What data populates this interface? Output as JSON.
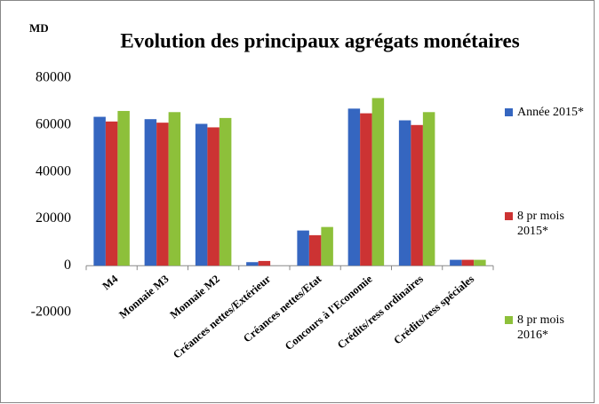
{
  "chart_data": {
    "type": "bar",
    "title": "Evolution des principaux agrégats monétaires",
    "unit": "MD",
    "categories": [
      "M4",
      "Monnaie M3",
      "Monnaie M2",
      "Créances nettes/Extérieur",
      "Créances nettes/Etat",
      "Concours à l'Economie",
      "Crédits/ress ordinaires",
      "Crédits/ress spéciales"
    ],
    "series": [
      {
        "name": "Année 2015*",
        "color": "#3566c0",
        "values": [
          63500,
          62500,
          60500,
          1500,
          15000,
          67000,
          62000,
          2500
        ]
      },
      {
        "name": "8 pr mois 2015*",
        "color": "#cc3333",
        "values": [
          61500,
          61000,
          59000,
          2000,
          13000,
          65000,
          60000,
          2500
        ]
      },
      {
        "name": "8 pr mois 2016*",
        "color": "#8dc03a",
        "values": [
          66000,
          65500,
          63000,
          0,
          16500,
          71500,
          65500,
          2500
        ]
      }
    ],
    "ylim": [
      -20000,
      80000
    ],
    "yticks": [
      -20000,
      0,
      20000,
      40000,
      60000,
      80000
    ],
    "grid": false
  }
}
